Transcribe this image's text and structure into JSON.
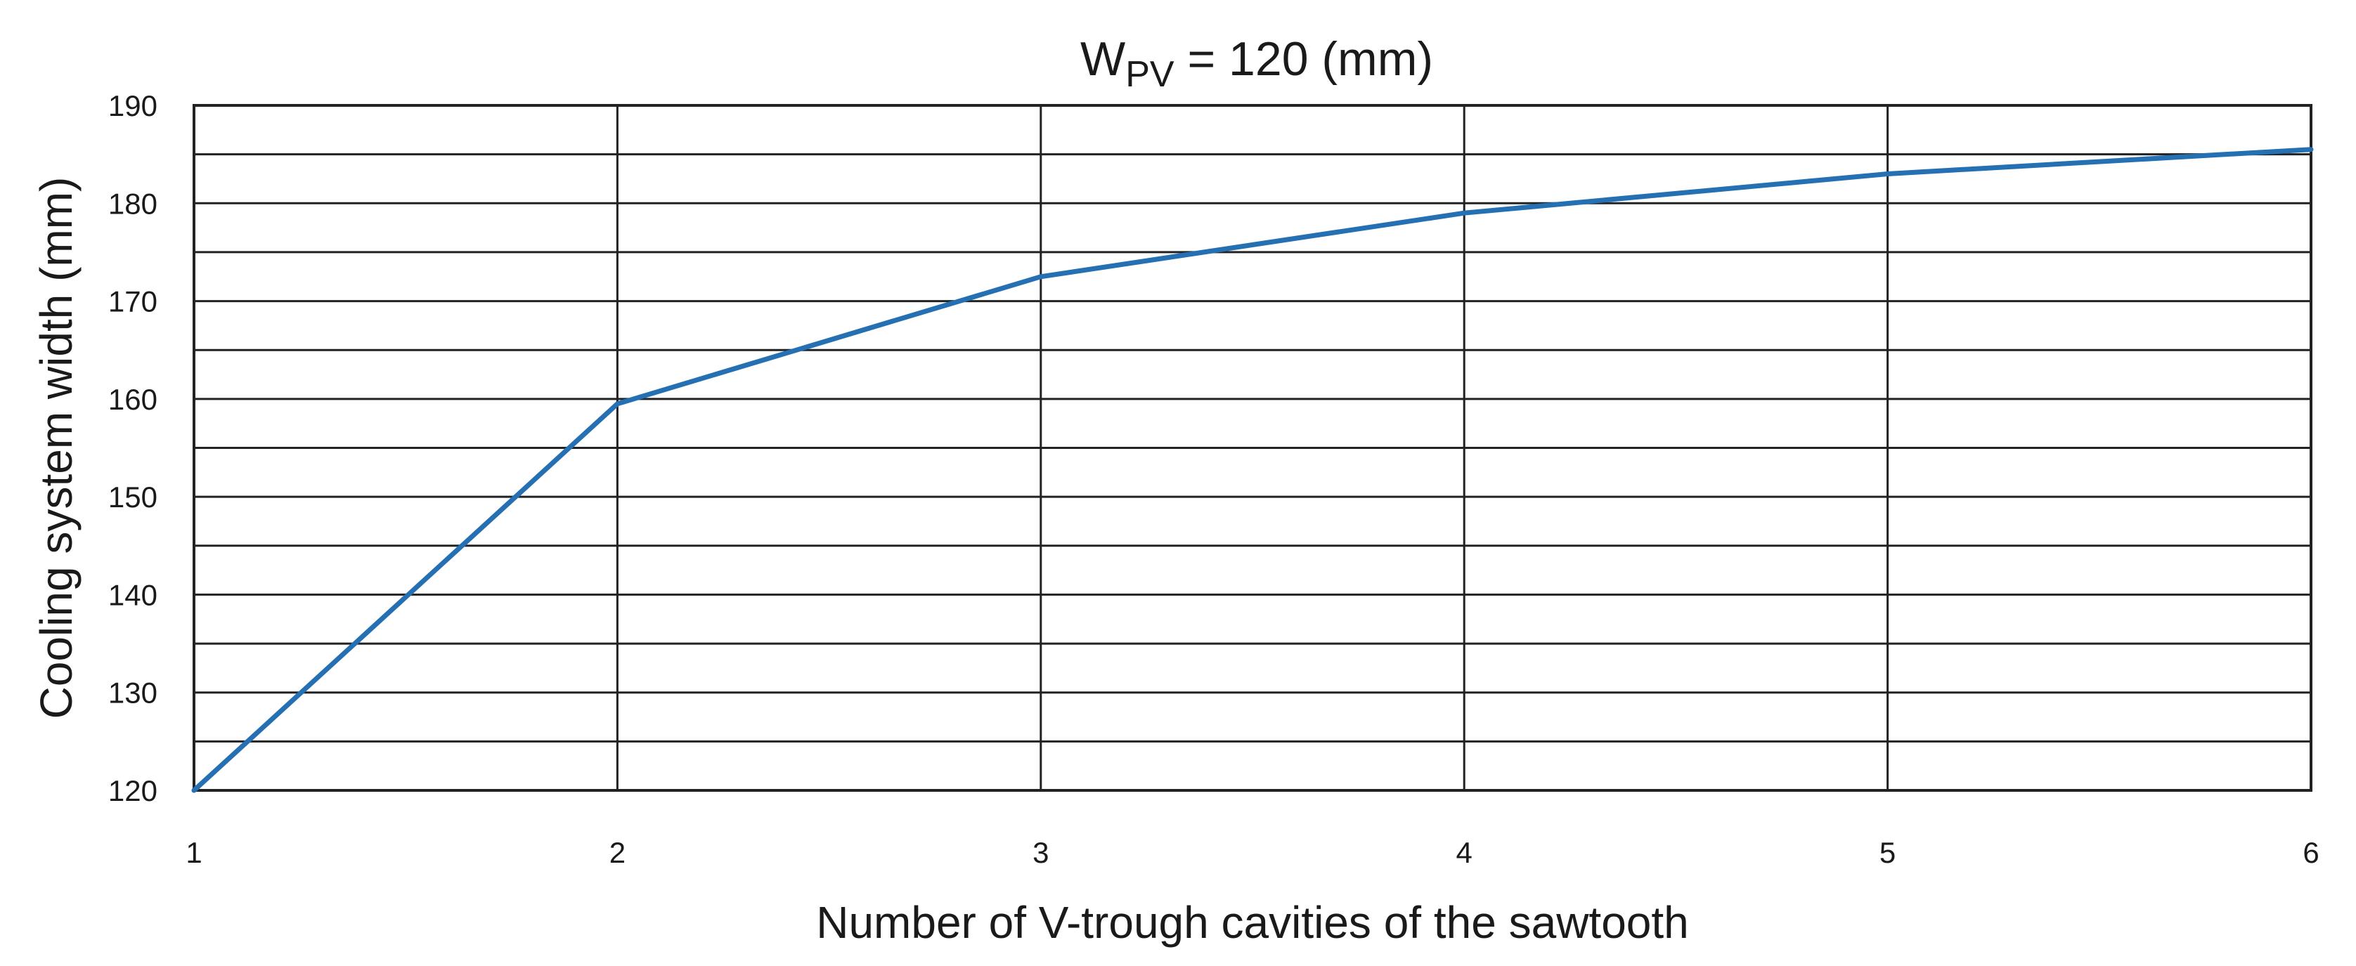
{
  "chart_data": {
    "type": "line",
    "title": "W",
    "title_subscript": "PV",
    "title_suffix": " = 120 (mm)",
    "xlabel": "Number of V-trough cavities of the sawtooth",
    "ylabel": "Cooling system width (mm)",
    "xlim": [
      1,
      6
    ],
    "ylim": [
      120,
      190
    ],
    "x_ticks": [
      1,
      2,
      3,
      4,
      5,
      6
    ],
    "y_ticks": [
      120,
      130,
      140,
      150,
      160,
      170,
      180,
      190
    ],
    "y_minor_step": 5,
    "grid": true,
    "legend": "none",
    "series": [
      {
        "color": "#2470b3",
        "x": [
          1,
          2,
          3,
          4,
          5,
          6
        ],
        "y": [
          120,
          159.5,
          172.5,
          179,
          183,
          185.5
        ]
      }
    ]
  }
}
